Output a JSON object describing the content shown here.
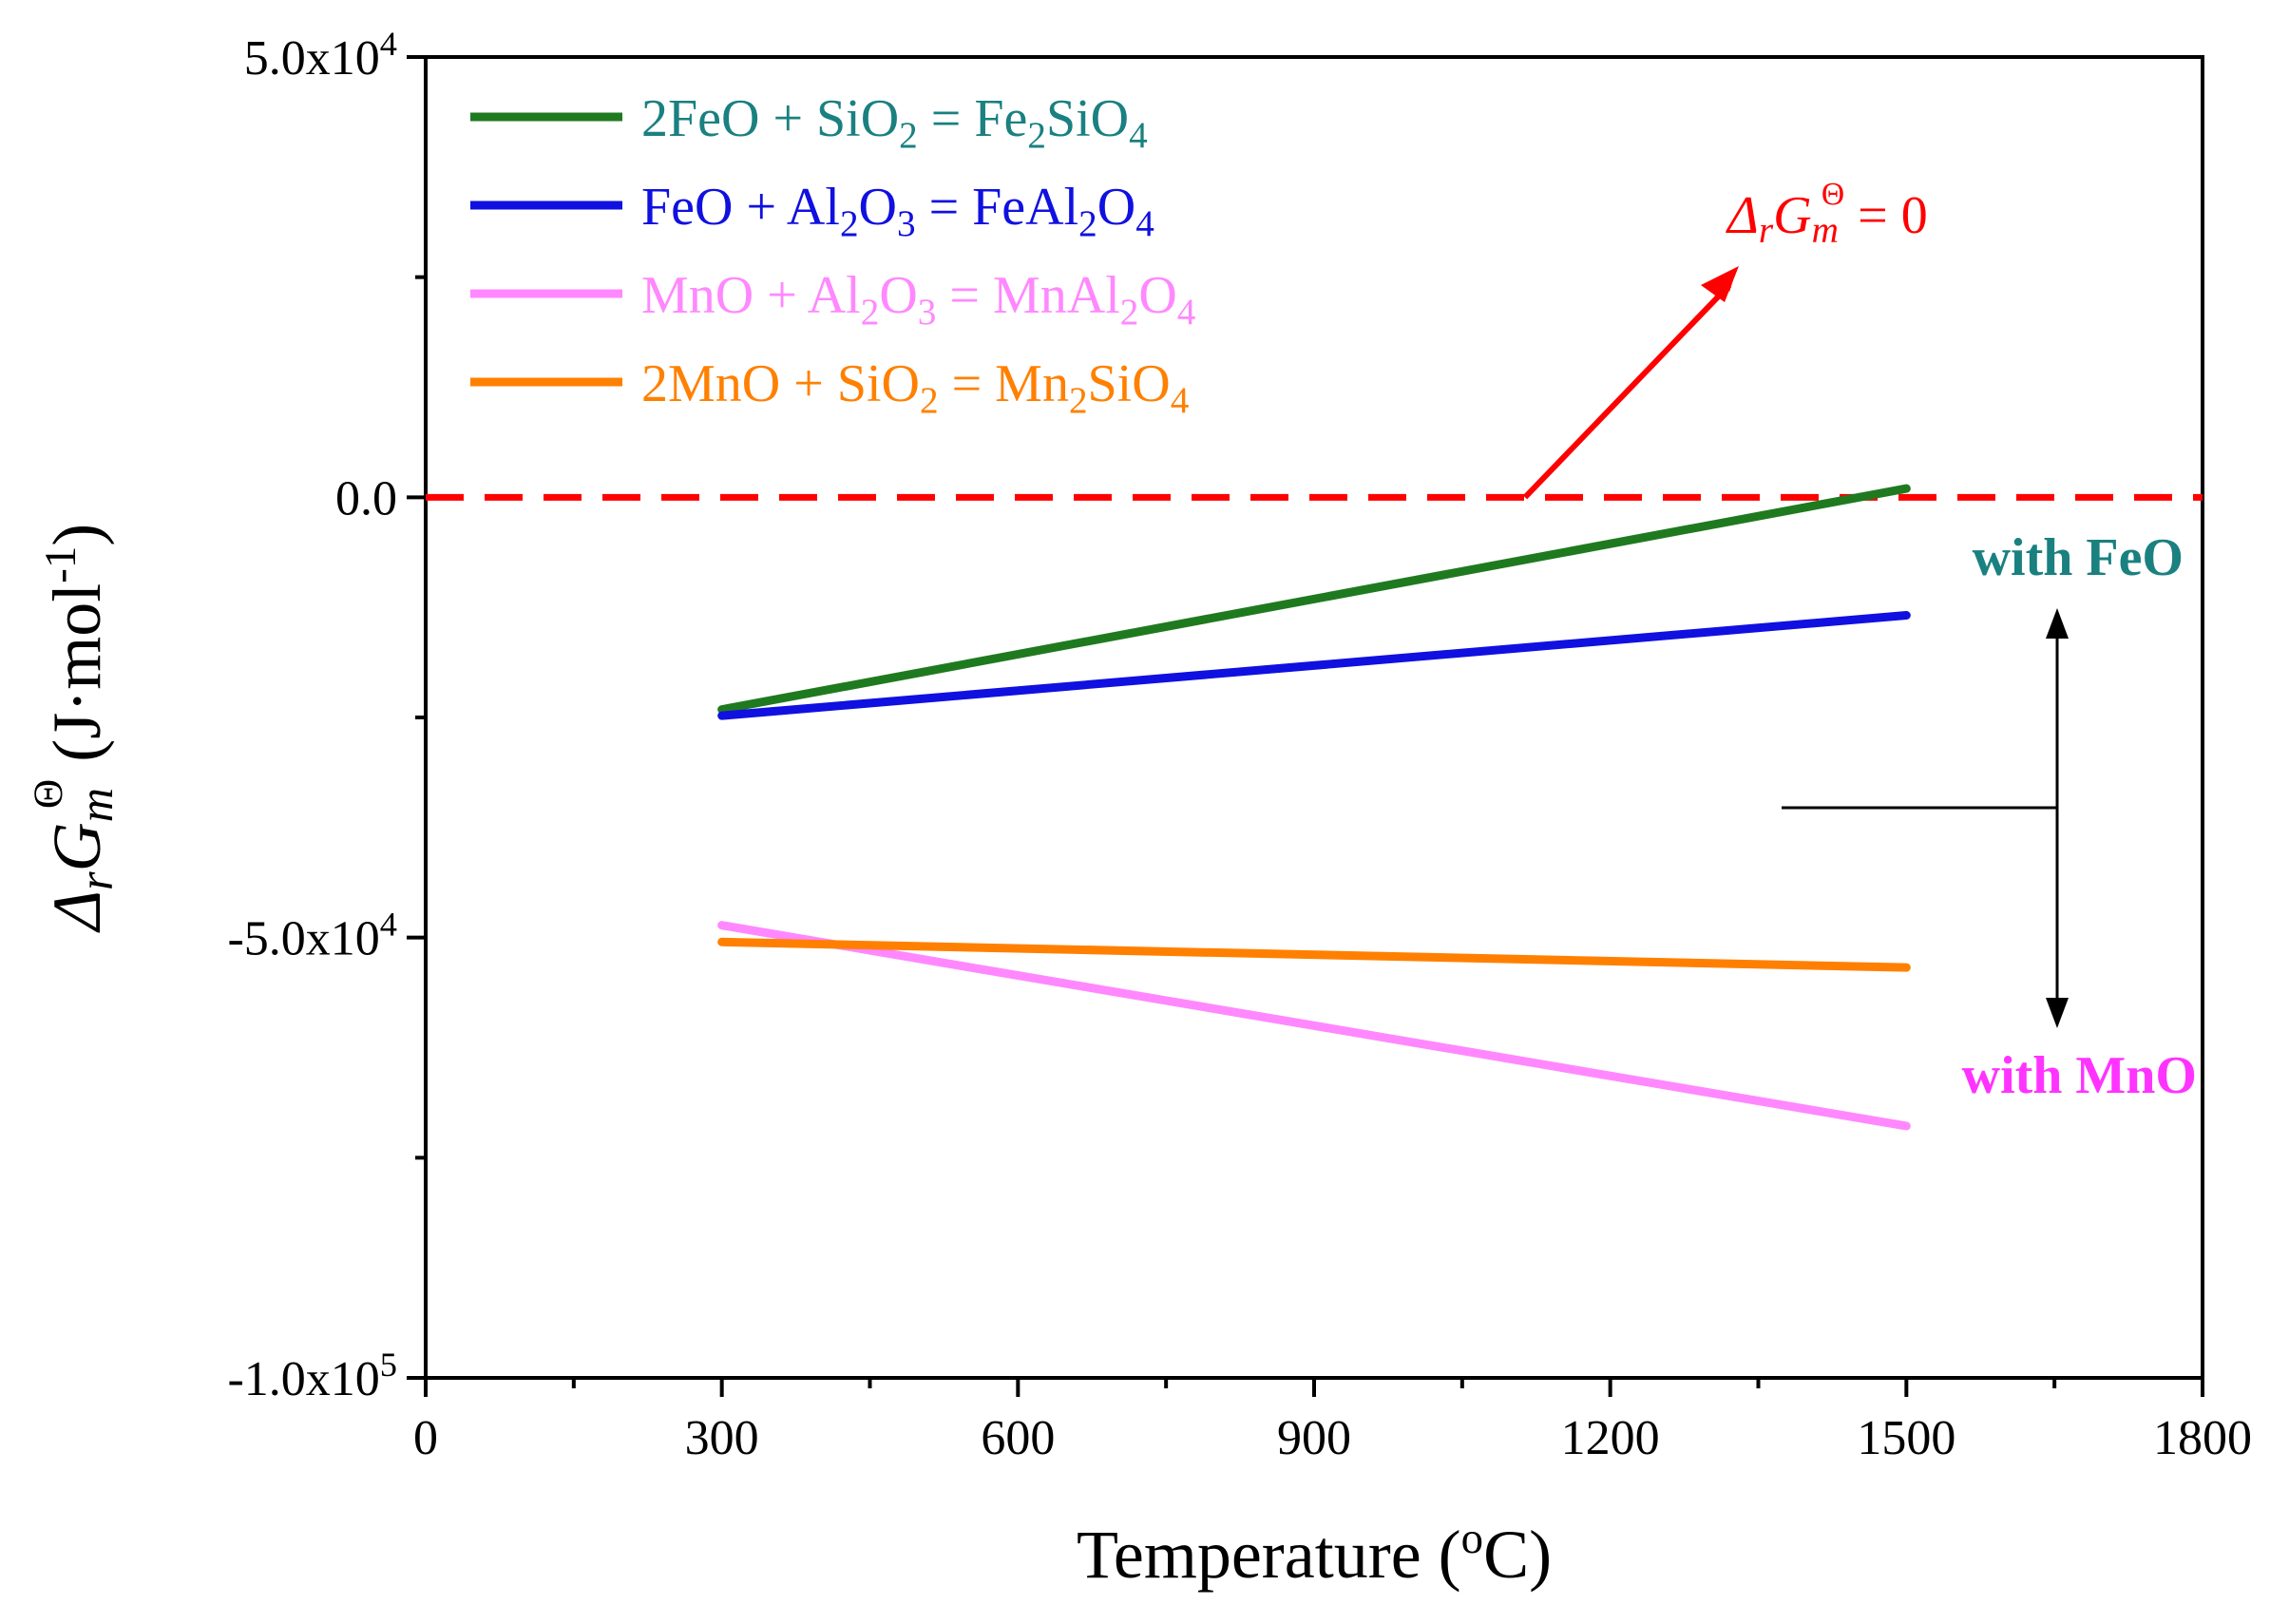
{
  "chart_data": {
    "type": "line",
    "xlabel": "Temperature (°C)",
    "ylabel": "ΔrGΘm (J·mol-1)",
    "xlim": [
      0,
      1800
    ],
    "ylim": [
      -100000,
      50000
    ],
    "x_ticks": [
      0,
      300,
      600,
      900,
      1200,
      1500,
      1800
    ],
    "x_tick_labels": [
      "0",
      "300",
      "600",
      "900",
      "1200",
      "1500",
      "1800"
    ],
    "y_ticks": [
      50000,
      0,
      -50000,
      -100000
    ],
    "y_tick_labels": [
      "5.0x10^4",
      "0.0",
      "-5.0x10^4",
      "-1.0x10^5"
    ],
    "grid": false,
    "legend_position": "top-left",
    "series": [
      {
        "name": "2FeO + SiO2 = Fe2SiO4",
        "color": "#1f7a1f",
        "text_color": "#1a8080",
        "x": [
          300,
          1500
        ],
        "y": [
          -24100,
          1000
        ]
      },
      {
        "name": "FeO + Al2O3 = FeAl2O4",
        "color": "#1010e0",
        "text_color": "#1010e0",
        "x": [
          300,
          1500
        ],
        "y": [
          -24800,
          -13400
        ]
      },
      {
        "name": "MnO + Al2O3 = MnAl2O4",
        "color": "#ff88ff",
        "text_color": "#ff88ff",
        "x": [
          300,
          1500
        ],
        "y": [
          -48600,
          -71400
        ]
      },
      {
        "name": "2MnO + SiO2 = Mn2SiO4",
        "color": "#ff8000",
        "text_color": "#ff8000",
        "x": [
          300,
          1500
        ],
        "y": [
          -50500,
          -53400
        ]
      }
    ],
    "reference_line": {
      "y": 0,
      "color": "#ff0000",
      "style": "dashed"
    },
    "annotations": [
      {
        "text": "ΔrGΘm = 0",
        "color": "#ff0000"
      },
      {
        "text": "with FeO",
        "color": "#1a8080"
      },
      {
        "text": "with MnO",
        "color": "#ff33ff"
      }
    ]
  }
}
